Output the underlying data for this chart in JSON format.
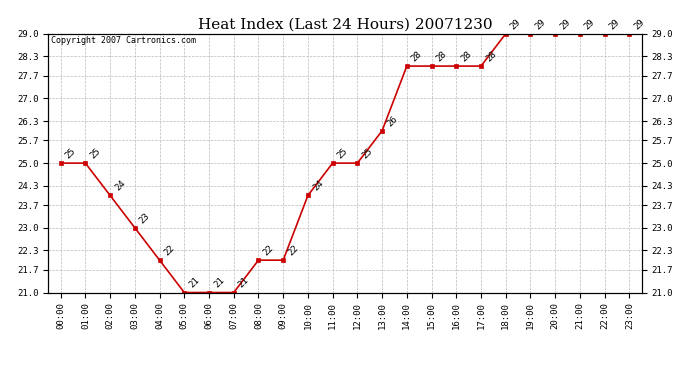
{
  "title": "Heat Index (Last 24 Hours) 20071230",
  "copyright": "Copyright 2007 Cartronics.com",
  "hours": [
    "00:00",
    "01:00",
    "02:00",
    "03:00",
    "04:00",
    "05:00",
    "06:00",
    "07:00",
    "08:00",
    "09:00",
    "10:00",
    "11:00",
    "12:00",
    "13:00",
    "14:00",
    "15:00",
    "16:00",
    "17:00",
    "18:00",
    "19:00",
    "20:00",
    "21:00",
    "22:00",
    "23:00"
  ],
  "values": [
    25,
    25,
    24,
    23,
    22,
    21,
    21,
    21,
    22,
    22,
    24,
    25,
    25,
    26,
    28,
    28,
    28,
    28,
    29,
    29,
    29,
    29,
    29,
    29
  ],
  "line_color": "#cc0000",
  "marker_color": "#cc0000",
  "background_color": "#ffffff",
  "grid_color": "#bbbbbb",
  "ylim": [
    21.0,
    29.0
  ],
  "yticks": [
    21.0,
    21.7,
    22.3,
    23.0,
    23.7,
    24.3,
    25.0,
    25.7,
    26.3,
    27.0,
    27.7,
    28.3,
    29.0
  ],
  "title_fontsize": 11,
  "label_fontsize": 6.5,
  "copyright_fontsize": 6,
  "annotation_fontsize": 6.5
}
